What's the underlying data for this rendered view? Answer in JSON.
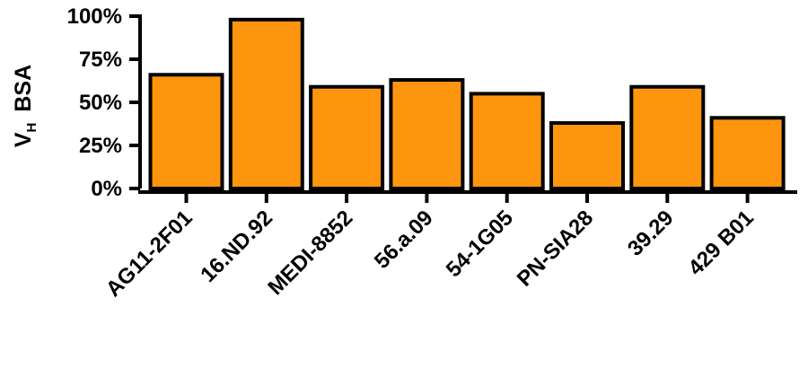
{
  "chart_data": {
    "type": "bar",
    "title": "",
    "xlabel": "",
    "ylabel": {
      "main": "V",
      "sub": "H",
      "rest": "BSA"
    },
    "categories": [
      "AG11-2F01",
      "16.ND.92",
      "MEDI-8852",
      "56.a.09",
      "54-1G05",
      "PN-SIA28",
      "39.29",
      "429 B01"
    ],
    "values": [
      66,
      98,
      59,
      63,
      55,
      38,
      59,
      41
    ],
    "ylim": [
      0,
      100
    ],
    "yticks": [
      0,
      25,
      50,
      75,
      100
    ],
    "ytick_labels": [
      "0%",
      "25%",
      "50%",
      "75%",
      "100%"
    ],
    "grid": false,
    "legend": "none",
    "colors": {
      "bar_fill": "#FD950E",
      "bar_stroke": "#000000",
      "axis": "#000000"
    }
  }
}
